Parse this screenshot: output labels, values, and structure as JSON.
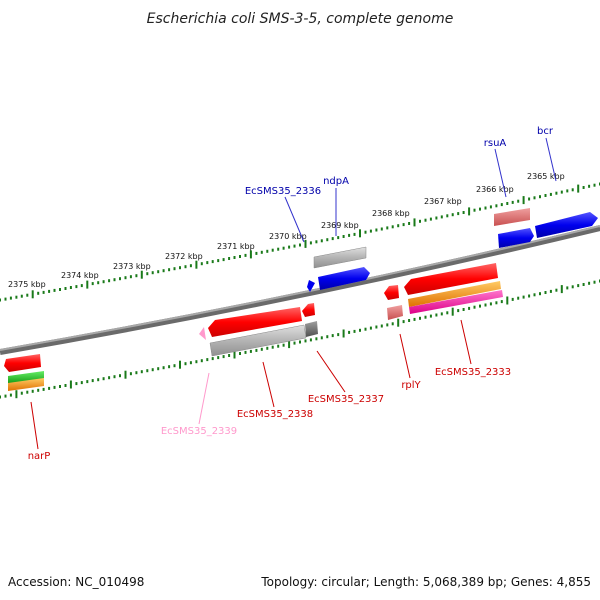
{
  "title": "Escherichia coli SMS-3-5, complete genome",
  "footer": {
    "accession": "Accession: NC_010498",
    "summary": "Topology: circular; Length: 5,068,389 bp; Genes: 4,855"
  },
  "scale": {
    "unit": "kbp",
    "labels": [
      "2375 kbp",
      "2374 kbp",
      "2373 kbp",
      "2372 kbp",
      "2371 kbp",
      "2370 kbp",
      "2369 kbp",
      "2368 kbp",
      "2367 kbp",
      "2366 kbp",
      "2365 kbp"
    ]
  },
  "colors": {
    "backbone": "#888888",
    "scale_dots": "#1a7a1a",
    "red": "#ff0000",
    "blue": "#0000ee",
    "grey": "#b4b4b4",
    "dark_grey": "#707070",
    "salmon": "#e07070",
    "pink": "#ff90c0",
    "orange": "#ff9900",
    "magenta": "#ff33aa",
    "green": "#22bb22",
    "label_blue": "#0000aa",
    "label_red": "#cc0000",
    "label_pink": "#ff99cc"
  },
  "gene_labels_top": [
    {
      "name": "EcSMS35_2336",
      "color": "#0000aa"
    },
    {
      "name": "ndpA",
      "color": "#0000aa"
    },
    {
      "name": "rsuA",
      "color": "#0000aa"
    },
    {
      "name": "bcr",
      "color": "#0000aa"
    }
  ],
  "gene_labels_bottom": [
    {
      "name": "narP",
      "color": "#cc0000"
    },
    {
      "name": "EcSMS35_2339",
      "color": "#ff99cc"
    },
    {
      "name": "EcSMS35_2338",
      "color": "#cc0000"
    },
    {
      "name": "EcSMS35_2337",
      "color": "#cc0000"
    },
    {
      "name": "rplY",
      "color": "#cc0000"
    },
    {
      "name": "EcSMS35_2333",
      "color": "#cc0000"
    }
  ]
}
